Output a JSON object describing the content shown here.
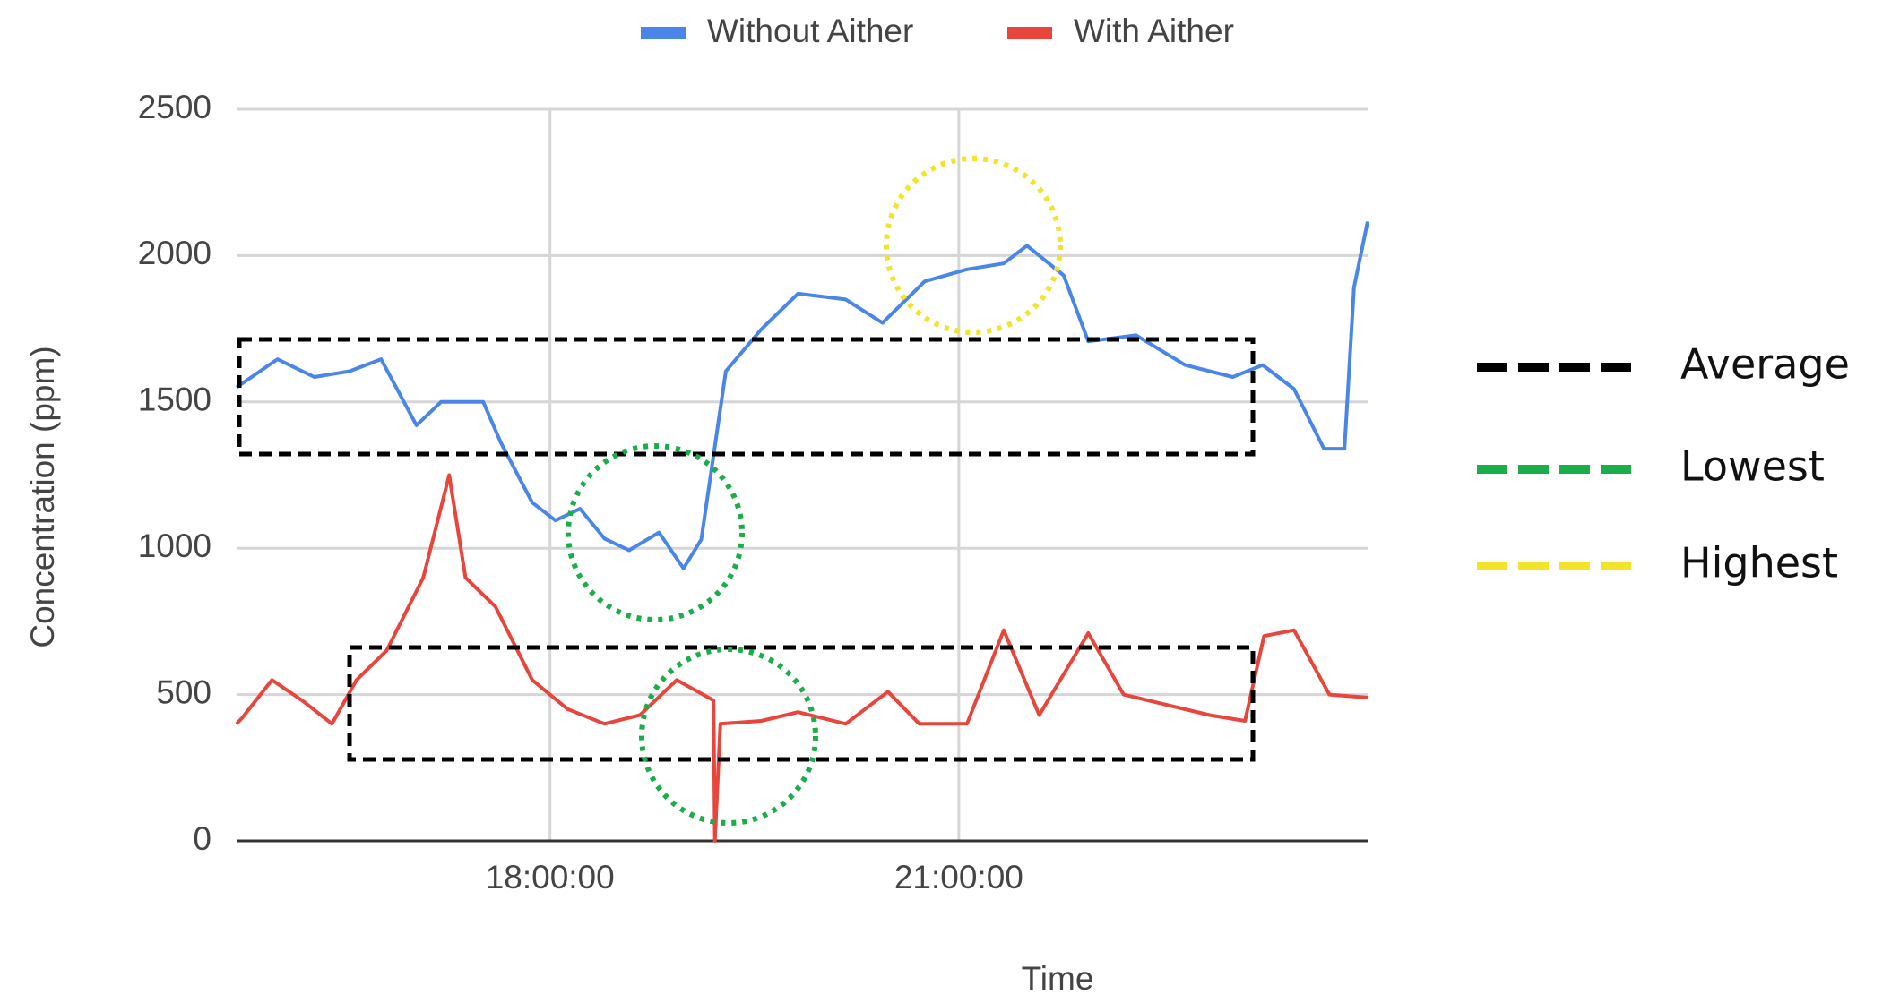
{
  "chart_data": {
    "type": "line",
    "x_label": "Time",
    "y_label": "Concentration (ppm)",
    "xlim": [
      15.7,
      24.0
    ],
    "xticks": [
      {
        "value": 18,
        "label": "18:00:00"
      },
      {
        "value": 21,
        "label": "21:00:00"
      }
    ],
    "ylim": [
      0,
      2500
    ],
    "yticks": [
      0,
      500,
      1000,
      1500,
      2000,
      2500
    ],
    "grid": true,
    "series": [
      {
        "name": "Without Aither",
        "color": "#4a86e8",
        "x": [
          15.7,
          16.0,
          16.27,
          16.53,
          16.76,
          17.02,
          17.2,
          17.51,
          17.64,
          17.87,
          18.04,
          18.22,
          18.4,
          18.58,
          18.8,
          18.98,
          19.11,
          19.29,
          19.55,
          19.82,
          20.17,
          20.44,
          20.75,
          21.06,
          21.33,
          21.5,
          21.77,
          21.95,
          22.3,
          22.66,
          23.01,
          23.23,
          23.46,
          23.68,
          23.83,
          23.9,
          24.0
        ],
        "values": [
          1550,
          1646,
          1585,
          1605,
          1646,
          1420,
          1500,
          1500,
          1360,
          1156,
          1095,
          1135,
          1033,
          993,
          1054,
          931,
          1030,
          1605,
          1748,
          1870,
          1850,
          1770,
          1912,
          1953,
          1973,
          2034,
          1932,
          1707,
          1728,
          1626,
          1585,
          1626,
          1544,
          1340,
          1340,
          1891,
          2116
        ]
      },
      {
        "name": "With Aither",
        "color": "#e8453c",
        "x": [
          15.7,
          15.74,
          15.96,
          16.18,
          16.4,
          16.58,
          16.8,
          17.07,
          17.26,
          17.38,
          17.6,
          17.87,
          18.13,
          18.4,
          18.66,
          18.93,
          19.2,
          19.21,
          19.25,
          19.55,
          19.82,
          20.17,
          20.48,
          20.71,
          21.06,
          21.33,
          21.59,
          21.95,
          22.21,
          22.48,
          22.84,
          23.1,
          23.24,
          23.46,
          23.72,
          24.0
        ],
        "values": [
          400,
          420,
          550,
          480,
          400,
          550,
          650,
          900,
          1250,
          900,
          800,
          550,
          450,
          400,
          430,
          550,
          480,
          0,
          400,
          410,
          440,
          400,
          510,
          400,
          400,
          720,
          430,
          710,
          500,
          470,
          430,
          410,
          700,
          720,
          500,
          490
        ]
      }
    ],
    "annotations": [
      {
        "label": "Average",
        "color": "#000000"
      },
      {
        "label": "Lowest",
        "color": "#1aae4a"
      },
      {
        "label": "Highest",
        "color": "#f2e42a"
      }
    ]
  }
}
